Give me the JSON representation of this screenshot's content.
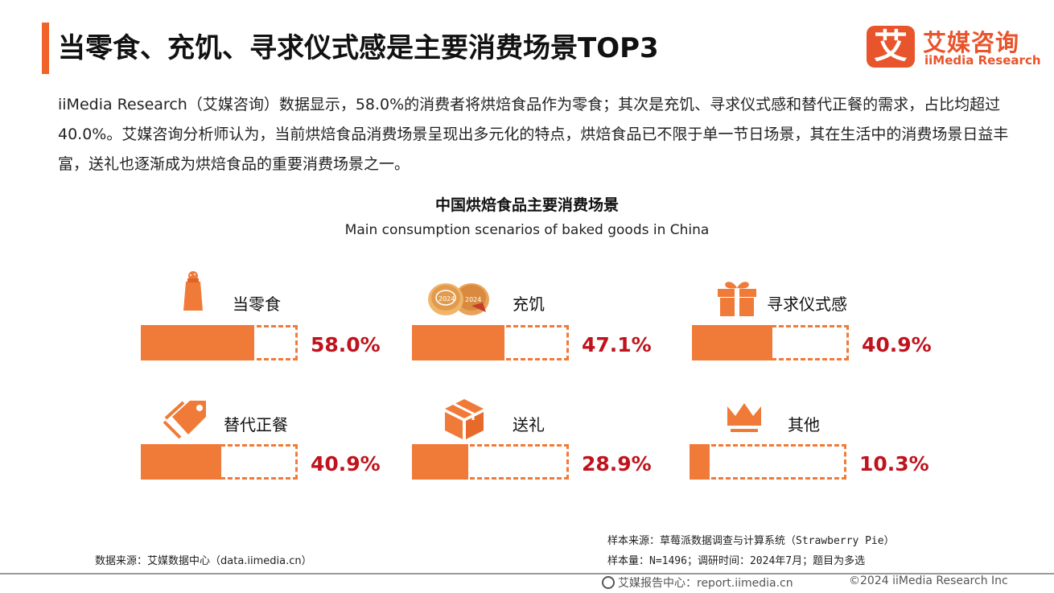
{
  "header": {
    "title": "当零食、充饥、寻求仪式感是主要消费场景TOP3",
    "logo_mark": "艾",
    "logo_cn": "艾媒咨询",
    "logo_en": "iiMedia Research"
  },
  "intro": "iiMedia Research（艾媒咨询）数据显示，58.0%的消费者将烘焙食品作为零食；其次是充饥、寻求仪式感和替代正餐的需求，占比均超过40.0%。艾媒咨询分析师认为，当前烘焙食品消费场景呈现出多元化的特点，烘焙食品已不限于单一节日场景，其在生活中的消费场景日益丰富，送礼也逐渐成为烘焙食品的重要消费场景之一。",
  "chart_data": {
    "type": "bar",
    "title": "中国烘焙食品主要消费场景",
    "subtitle": "Main consumption scenarios of baked goods in China",
    "unit": "%",
    "ylim": [
      0,
      100
    ],
    "categories": [
      "当零食",
      "充饥",
      "寻求仪式感",
      "替代正餐",
      "送礼",
      "其他"
    ],
    "values": [
      58.0,
      47.1,
      40.9,
      40.9,
      28.9,
      10.3
    ],
    "value_labels": [
      "58.0%",
      "47.1%",
      "40.9%",
      "40.9%",
      "28.9%",
      "10.3%"
    ],
    "icons": [
      "salt-shaker-icon",
      "mooncake-icon",
      "gift-box-icon",
      "price-tag-icon",
      "package-box-icon",
      "crown-icon"
    ],
    "bar_color": "#f07a38",
    "value_color": "#c0131d"
  },
  "footer": {
    "data_source": "数据来源：艾媒数据中心（data.iimedia.cn）",
    "sample_source": "样本来源：草莓派数据调查与计算系统（Strawberry Pie）",
    "sample_size": "样本量：N=1496；调研时间：2024年7月；题目为多选",
    "report_center": "艾媒报告中心：report.iimedia.cn",
    "copyright": "©2024  iiMedia Research  Inc"
  },
  "colors": {
    "accent": "#f0632a",
    "brand": "#e8542b"
  }
}
